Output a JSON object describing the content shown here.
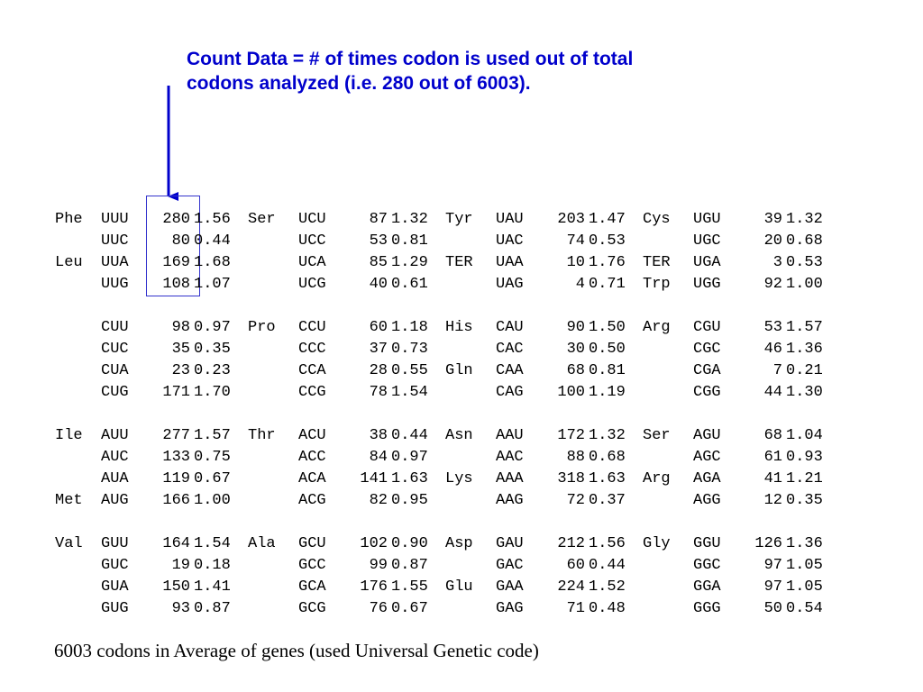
{
  "annotation": {
    "line1": "Count Data = # of times codon is used out of total",
    "line2": "codons analyzed (i.e. 280 out of 6003)."
  },
  "footer": "6003 codons in Average of genes (used Universal Genetic code)",
  "colors": {
    "annotation": "#0000cc",
    "arrow": "#0000cc",
    "box": "#3333cc"
  },
  "groups": [
    [
      [
        [
          "Phe",
          "UUU",
          "280",
          "1.56"
        ],
        [
          "Ser",
          "UCU",
          "87",
          "1.32"
        ],
        [
          "Tyr",
          "UAU",
          "203",
          "1.47"
        ],
        [
          "Cys",
          "UGU",
          "39",
          "1.32"
        ]
      ],
      [
        [
          "",
          "UUC",
          "80",
          "0.44"
        ],
        [
          "",
          "UCC",
          "53",
          "0.81"
        ],
        [
          "",
          "UAC",
          "74",
          "0.53"
        ],
        [
          "",
          "UGC",
          "20",
          "0.68"
        ]
      ],
      [
        [
          "Leu",
          "UUA",
          "169",
          "1.68"
        ],
        [
          "",
          "UCA",
          "85",
          "1.29"
        ],
        [
          "TER",
          "UAA",
          "10",
          "1.76"
        ],
        [
          "TER",
          "UGA",
          "3",
          "0.53"
        ]
      ],
      [
        [
          "",
          "UUG",
          "108",
          "1.07"
        ],
        [
          "",
          "UCG",
          "40",
          "0.61"
        ],
        [
          "",
          "UAG",
          "4",
          "0.71"
        ],
        [
          "Trp",
          "UGG",
          "92",
          "1.00"
        ]
      ]
    ],
    [
      [
        [
          "",
          "CUU",
          "98",
          "0.97"
        ],
        [
          "Pro",
          "CCU",
          "60",
          "1.18"
        ],
        [
          "His",
          "CAU",
          "90",
          "1.50"
        ],
        [
          "Arg",
          "CGU",
          "53",
          "1.57"
        ]
      ],
      [
        [
          "",
          "CUC",
          "35",
          "0.35"
        ],
        [
          "",
          "CCC",
          "37",
          "0.73"
        ],
        [
          "",
          "CAC",
          "30",
          "0.50"
        ],
        [
          "",
          "CGC",
          "46",
          "1.36"
        ]
      ],
      [
        [
          "",
          "CUA",
          "23",
          "0.23"
        ],
        [
          "",
          "CCA",
          "28",
          "0.55"
        ],
        [
          "Gln",
          "CAA",
          "68",
          "0.81"
        ],
        [
          "",
          "CGA",
          "7",
          "0.21"
        ]
      ],
      [
        [
          "",
          "CUG",
          "171",
          "1.70"
        ],
        [
          "",
          "CCG",
          "78",
          "1.54"
        ],
        [
          "",
          "CAG",
          "100",
          "1.19"
        ],
        [
          "",
          "CGG",
          "44",
          "1.30"
        ]
      ]
    ],
    [
      [
        [
          "Ile",
          "AUU",
          "277",
          "1.57"
        ],
        [
          "Thr",
          "ACU",
          "38",
          "0.44"
        ],
        [
          "Asn",
          "AAU",
          "172",
          "1.32"
        ],
        [
          "Ser",
          "AGU",
          "68",
          "1.04"
        ]
      ],
      [
        [
          "",
          "AUC",
          "133",
          "0.75"
        ],
        [
          "",
          "ACC",
          "84",
          "0.97"
        ],
        [
          "",
          "AAC",
          "88",
          "0.68"
        ],
        [
          "",
          "AGC",
          "61",
          "0.93"
        ]
      ],
      [
        [
          "",
          "AUA",
          "119",
          "0.67"
        ],
        [
          "",
          "ACA",
          "141",
          "1.63"
        ],
        [
          "Lys",
          "AAA",
          "318",
          "1.63"
        ],
        [
          "Arg",
          "AGA",
          "41",
          "1.21"
        ]
      ],
      [
        [
          "Met",
          "AUG",
          "166",
          "1.00"
        ],
        [
          "",
          "ACG",
          "82",
          "0.95"
        ],
        [
          "",
          "AAG",
          "72",
          "0.37"
        ],
        [
          "",
          "AGG",
          "12",
          "0.35"
        ]
      ]
    ],
    [
      [
        [
          "Val",
          "GUU",
          "164",
          "1.54"
        ],
        [
          "Ala",
          "GCU",
          "102",
          "0.90"
        ],
        [
          "Asp",
          "GAU",
          "212",
          "1.56"
        ],
        [
          "Gly",
          "GGU",
          "126",
          "1.36"
        ]
      ],
      [
        [
          "",
          "GUC",
          "19",
          "0.18"
        ],
        [
          "",
          "GCC",
          "99",
          "0.87"
        ],
        [
          "",
          "GAC",
          "60",
          "0.44"
        ],
        [
          "",
          "GGC",
          "97",
          "1.05"
        ]
      ],
      [
        [
          "",
          "GUA",
          "150",
          "1.41"
        ],
        [
          "",
          "GCA",
          "176",
          "1.55"
        ],
        [
          "Glu",
          "GAA",
          "224",
          "1.52"
        ],
        [
          "",
          "GGA",
          "97",
          "1.05"
        ]
      ],
      [
        [
          "",
          "GUG",
          "93",
          "0.87"
        ],
        [
          "",
          "GCG",
          "76",
          "0.67"
        ],
        [
          "",
          "GAG",
          "71",
          "0.48"
        ],
        [
          "",
          "GGG",
          "50",
          "0.54"
        ]
      ]
    ]
  ]
}
